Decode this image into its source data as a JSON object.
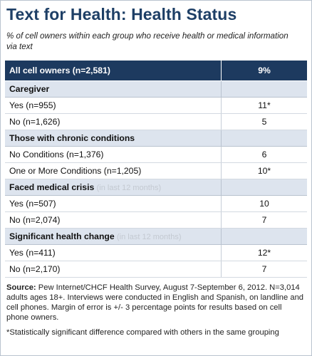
{
  "title": "Text for Health: Health Status",
  "subtitle": "% of cell owners within each group who receive health or medical information via text",
  "all_row": {
    "label": "All cell owners (n=2,581)",
    "value": "9%"
  },
  "sections": [
    {
      "heading": "Caregiver",
      "note": "",
      "rows": [
        {
          "label": "Yes (n=955)",
          "value": "11*"
        },
        {
          "label": "No (n=1,626)",
          "value": "5"
        }
      ]
    },
    {
      "heading": "Those with chronic conditions",
      "note": "",
      "rows": [
        {
          "label": "No Conditions (n=1,376)",
          "value": "6"
        },
        {
          "label": "One or More Conditions (n=1,205)",
          "value": "10*"
        }
      ]
    },
    {
      "heading": "Faced medical crisis",
      "note": "(in last 12 months)",
      "rows": [
        {
          "label": "Yes (n=507)",
          "value": "10"
        },
        {
          "label": "No (n=2,074)",
          "value": "7"
        }
      ]
    },
    {
      "heading": "Significant health change",
      "note": "(in last 12 months)",
      "rows": [
        {
          "label": "Yes (n=411)",
          "value": "12*"
        },
        {
          "label": "No (n=2,170)",
          "value": "7"
        }
      ]
    }
  ],
  "source_label": "Source:",
  "source_text": "Pew Internet/CHCF Health Survey, August 7-September 6, 2012. N=3,014 adults ages 18+. Interviews were conducted in English and Spanish, on landline and cell phones.  Margin of error is +/- 3 percentage points for results based on cell phone owners.",
  "footnote": "*Statistically  significant difference compared with others in the same grouping"
}
